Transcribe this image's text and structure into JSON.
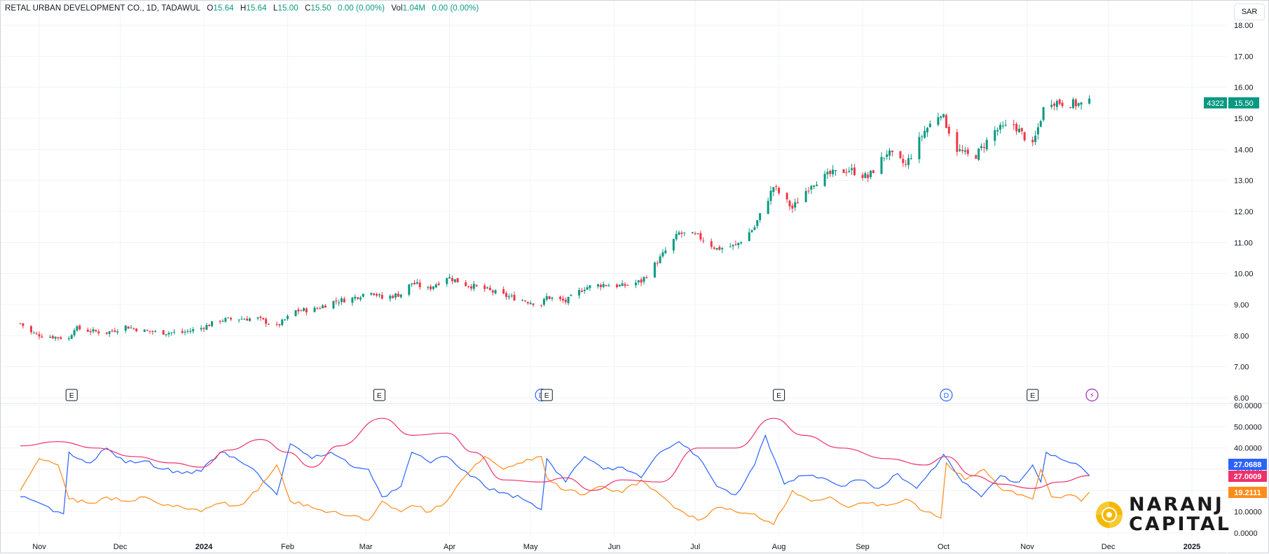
{
  "header": {
    "symbol": "RETAL URBAN DEVELOPMENT CO., 1D, TADAWUL",
    "o_label": "O",
    "o_value": "15.64",
    "h_label": "H",
    "h_value": "15.64",
    "l_label": "L",
    "l_value": "15.00",
    "c_label": "C",
    "c_value": "15.50",
    "change": "0.00 (0.00%)",
    "vol_label": "Vol",
    "vol_value": "1.04M",
    "vol_change": "0.00 (0.00%)"
  },
  "currency_button": "SAR",
  "price_tag": {
    "countdown": "4322",
    "price": "15.50"
  },
  "brand": {
    "line1": "NARANJ",
    "line2": "CAPITAL"
  },
  "colors": {
    "up": "#089981",
    "down": "#f23645",
    "plus_di": "#2962ff",
    "minus_di": "#ff8c1a",
    "adx": "#f0306b",
    "grid": "#f0f3fa",
    "axis_text": "#131722",
    "brand_accent": "#f5b800"
  },
  "events": [
    {
      "kind": "E",
      "date": "2023-11-13",
      "icon": "earnings-icon"
    },
    {
      "kind": "E",
      "date": "2024-03-06",
      "icon": "earnings-icon"
    },
    {
      "kind": "D",
      "date": "2024-05-05",
      "icon": "dividend-icon"
    },
    {
      "kind": "E",
      "date": "2024-05-07",
      "icon": "earnings-icon"
    },
    {
      "kind": "E",
      "date": "2024-08-01",
      "icon": "earnings-icon"
    },
    {
      "kind": "D",
      "date": "2024-10-02",
      "icon": "dividend-icon"
    },
    {
      "kind": "E",
      "date": "2024-11-03",
      "icon": "earnings-icon"
    },
    {
      "kind": "⚡",
      "date": "2024-11-25",
      "icon": "split-icon"
    }
  ],
  "chart_data": [
    {
      "type": "candlestick",
      "title": "RETAL URBAN DEVELOPMENT CO., 1D, TADAWUL",
      "x_ticks": [
        "Nov",
        "Dec",
        "2024",
        "Feb",
        "Mar",
        "Apr",
        "May",
        "Jun",
        "Jul",
        "Aug",
        "Sep",
        "Oct",
        "Nov",
        "Dec",
        "2025"
      ],
      "x_tick_dates": [
        "2023-11-01",
        "2023-12-01",
        "2024-01-01",
        "2024-02-01",
        "2024-03-01",
        "2024-04-01",
        "2024-05-01",
        "2024-06-01",
        "2024-07-01",
        "2024-08-01",
        "2024-09-01",
        "2024-10-01",
        "2024-11-01",
        "2024-12-01",
        "2025-01-01"
      ],
      "x_range": [
        "2023-10-25",
        "2025-01-15"
      ],
      "ylim": [
        6.0,
        18.0
      ],
      "y_ticks": [
        "6.00",
        "7.00",
        "8.00",
        "9.00",
        "10.00",
        "11.00",
        "12.00",
        "13.00",
        "14.00",
        "15.00",
        "16.00",
        "17.00",
        "18.00"
      ],
      "grid": true,
      "close_path": [
        [
          "2023-10-25",
          8.4
        ],
        [
          "2023-10-29",
          8.1
        ],
        [
          "2023-11-02",
          8.0
        ],
        [
          "2023-11-08",
          7.95
        ],
        [
          "2023-11-12",
          7.9
        ],
        [
          "2023-11-14",
          8.25
        ],
        [
          "2023-11-20",
          8.15
        ],
        [
          "2023-11-26",
          8.1
        ],
        [
          "2023-12-03",
          8.3
        ],
        [
          "2023-12-10",
          8.15
        ],
        [
          "2023-12-17",
          8.1
        ],
        [
          "2023-12-24",
          8.1
        ],
        [
          "2023-12-31",
          8.25
        ],
        [
          "2024-01-07",
          8.5
        ],
        [
          "2024-01-14",
          8.55
        ],
        [
          "2024-01-21",
          8.55
        ],
        [
          "2024-01-28",
          8.3
        ],
        [
          "2024-02-04",
          8.8
        ],
        [
          "2024-02-11",
          8.85
        ],
        [
          "2024-02-18",
          9.1
        ],
        [
          "2024-02-25",
          9.2
        ],
        [
          "2024-03-03",
          9.45
        ],
        [
          "2024-03-07",
          9.2
        ],
        [
          "2024-03-14",
          9.35
        ],
        [
          "2024-03-18",
          9.7
        ],
        [
          "2024-03-24",
          9.5
        ],
        [
          "2024-03-31",
          9.9
        ],
        [
          "2024-04-07",
          9.65
        ],
        [
          "2024-04-14",
          9.5
        ],
        [
          "2024-04-21",
          9.3
        ],
        [
          "2024-04-28",
          9.15
        ],
        [
          "2024-05-05",
          9.0
        ],
        [
          "2024-05-07",
          9.25
        ],
        [
          "2024-05-14",
          9.1
        ],
        [
          "2024-05-21",
          9.55
        ],
        [
          "2024-05-28",
          9.65
        ],
        [
          "2024-06-04",
          9.6
        ],
        [
          "2024-06-11",
          9.75
        ],
        [
          "2024-06-18",
          10.5
        ],
        [
          "2024-06-25",
          11.3
        ],
        [
          "2024-07-02",
          11.2
        ],
        [
          "2024-07-09",
          10.8
        ],
        [
          "2024-07-16",
          10.9
        ],
        [
          "2024-07-23",
          11.5
        ],
        [
          "2024-07-30",
          12.8
        ],
        [
          "2024-08-06",
          12.1
        ],
        [
          "2024-08-13",
          12.9
        ],
        [
          "2024-08-20",
          13.2
        ],
        [
          "2024-08-27",
          13.35
        ],
        [
          "2024-09-03",
          13.1
        ],
        [
          "2024-09-10",
          13.9
        ],
        [
          "2024-09-17",
          13.5
        ],
        [
          "2024-09-24",
          14.6
        ],
        [
          "2024-09-30",
          15.2
        ],
        [
          "2024-10-06",
          14.0
        ],
        [
          "2024-10-12",
          13.7
        ],
        [
          "2024-10-20",
          14.6
        ],
        [
          "2024-10-27",
          14.8
        ],
        [
          "2024-11-03",
          14.1
        ],
        [
          "2024-11-08",
          15.6
        ],
        [
          "2024-11-14",
          15.5
        ],
        [
          "2024-11-21",
          15.45
        ],
        [
          "2024-11-24",
          15.5
        ]
      ]
    },
    {
      "type": "line",
      "title": "",
      "ylim": [
        0,
        60
      ],
      "y_ticks": [
        "0.0000",
        "10.0000",
        "20.0000",
        "30.0000",
        "40.0000",
        "50.0000",
        "60.0000"
      ],
      "last_values": {
        "plus_di": "27.0688",
        "adx": "27.0009",
        "minus_di": "19.2111"
      },
      "series": [
        {
          "key": "plus_di",
          "points": [
            [
              "2023-10-25",
              17
            ],
            [
              "2023-11-08",
              10
            ],
            [
              "2023-11-10",
              9
            ],
            [
              "2023-11-12",
              38
            ],
            [
              "2023-11-20",
              33
            ],
            [
              "2023-11-26",
              40
            ],
            [
              "2023-12-03",
              33
            ],
            [
              "2023-12-10",
              34
            ],
            [
              "2023-12-17",
              30
            ],
            [
              "2023-12-24",
              28
            ],
            [
              "2023-12-31",
              29
            ],
            [
              "2024-01-07",
              38
            ],
            [
              "2024-01-14",
              34
            ],
            [
              "2024-01-21",
              28
            ],
            [
              "2024-01-28",
              18
            ],
            [
              "2024-02-02",
              42
            ],
            [
              "2024-02-10",
              35
            ],
            [
              "2024-02-17",
              38
            ],
            [
              "2024-02-24",
              32
            ],
            [
              "2024-03-02",
              30
            ],
            [
              "2024-03-07",
              17
            ],
            [
              "2024-03-14",
              22
            ],
            [
              "2024-03-18",
              38
            ],
            [
              "2024-03-25",
              33
            ],
            [
              "2024-03-31",
              36
            ],
            [
              "2024-04-07",
              29
            ],
            [
              "2024-04-14",
              22
            ],
            [
              "2024-04-21",
              19
            ],
            [
              "2024-04-28",
              16
            ],
            [
              "2024-05-05",
              11
            ],
            [
              "2024-05-07",
              35
            ],
            [
              "2024-05-14",
              24
            ],
            [
              "2024-05-21",
              36
            ],
            [
              "2024-05-28",
              30
            ],
            [
              "2024-06-04",
              31
            ],
            [
              "2024-06-11",
              26
            ],
            [
              "2024-06-18",
              38
            ],
            [
              "2024-06-25",
              43
            ],
            [
              "2024-07-02",
              36
            ],
            [
              "2024-07-09",
              22
            ],
            [
              "2024-07-16",
              18
            ],
            [
              "2024-07-23",
              32
            ],
            [
              "2024-07-27",
              46
            ],
            [
              "2024-08-03",
              23
            ],
            [
              "2024-08-10",
              27
            ],
            [
              "2024-08-17",
              26
            ],
            [
              "2024-08-24",
              22
            ],
            [
              "2024-08-31",
              25
            ],
            [
              "2024-09-07",
              21
            ],
            [
              "2024-09-14",
              28
            ],
            [
              "2024-09-21",
              21
            ],
            [
              "2024-09-28",
              31
            ],
            [
              "2024-10-01",
              37
            ],
            [
              "2024-10-08",
              24
            ],
            [
              "2024-10-15",
              17
            ],
            [
              "2024-10-22",
              27
            ],
            [
              "2024-10-29",
              24
            ],
            [
              "2024-11-03",
              32
            ],
            [
              "2024-11-06",
              24
            ],
            [
              "2024-11-08",
              38
            ],
            [
              "2024-11-15",
              34
            ],
            [
              "2024-11-21",
              31
            ],
            [
              "2024-11-24",
              27.07
            ]
          ]
        },
        {
          "key": "minus_di",
          "points": [
            [
              "2023-10-25",
              20
            ],
            [
              "2023-11-01",
              35
            ],
            [
              "2023-11-08",
              32
            ],
            [
              "2023-11-12",
              16
            ],
            [
              "2023-11-20",
              14
            ],
            [
              "2023-11-26",
              17
            ],
            [
              "2023-12-03",
              15
            ],
            [
              "2023-12-10",
              17
            ],
            [
              "2023-12-17",
              13
            ],
            [
              "2023-12-24",
              12
            ],
            [
              "2023-12-31",
              10
            ],
            [
              "2024-01-07",
              14
            ],
            [
              "2024-01-14",
              13
            ],
            [
              "2024-01-21",
              20
            ],
            [
              "2024-01-28",
              32
            ],
            [
              "2024-02-02",
              15
            ],
            [
              "2024-02-10",
              12
            ],
            [
              "2024-02-17",
              10
            ],
            [
              "2024-02-24",
              8
            ],
            [
              "2024-03-02",
              6
            ],
            [
              "2024-03-07",
              15
            ],
            [
              "2024-03-14",
              10
            ],
            [
              "2024-03-18",
              13
            ],
            [
              "2024-03-25",
              10
            ],
            [
              "2024-03-31",
              15
            ],
            [
              "2024-04-07",
              27
            ],
            [
              "2024-04-14",
              36
            ],
            [
              "2024-04-21",
              30
            ],
            [
              "2024-04-28",
              33
            ],
            [
              "2024-05-05",
              36
            ],
            [
              "2024-05-07",
              26
            ],
            [
              "2024-05-14",
              20
            ],
            [
              "2024-05-21",
              18
            ],
            [
              "2024-05-28",
              22
            ],
            [
              "2024-06-04",
              19
            ],
            [
              "2024-06-11",
              25
            ],
            [
              "2024-06-18",
              18
            ],
            [
              "2024-06-25",
              11
            ],
            [
              "2024-07-02",
              6
            ],
            [
              "2024-07-09",
              12
            ],
            [
              "2024-07-16",
              10
            ],
            [
              "2024-07-23",
              9
            ],
            [
              "2024-07-30",
              4
            ],
            [
              "2024-08-06",
              20
            ],
            [
              "2024-08-13",
              15
            ],
            [
              "2024-08-20",
              17
            ],
            [
              "2024-08-27",
              12
            ],
            [
              "2024-09-03",
              14
            ],
            [
              "2024-09-10",
              13
            ],
            [
              "2024-09-17",
              16
            ],
            [
              "2024-09-24",
              10
            ],
            [
              "2024-09-30",
              7
            ],
            [
              "2024-10-02",
              33
            ],
            [
              "2024-10-09",
              25
            ],
            [
              "2024-10-16",
              30
            ],
            [
              "2024-10-23",
              20
            ],
            [
              "2024-10-30",
              18
            ],
            [
              "2024-11-03",
              16
            ],
            [
              "2024-11-06",
              30
            ],
            [
              "2024-11-10",
              17
            ],
            [
              "2024-11-17",
              18
            ],
            [
              "2024-11-21",
              15
            ],
            [
              "2024-11-24",
              19.21
            ]
          ]
        },
        {
          "key": "adx",
          "points": [
            [
              "2023-10-25",
              41
            ],
            [
              "2023-11-08",
              43
            ],
            [
              "2023-11-22",
              40
            ],
            [
              "2023-12-06",
              36
            ],
            [
              "2023-12-20",
              33
            ],
            [
              "2023-12-31",
              31
            ],
            [
              "2024-01-10",
              39
            ],
            [
              "2024-01-22",
              44
            ],
            [
              "2024-02-01",
              38
            ],
            [
              "2024-02-10",
              31
            ],
            [
              "2024-02-20",
              41
            ],
            [
              "2024-03-07",
              54
            ],
            [
              "2024-03-18",
              46
            ],
            [
              "2024-03-31",
              47
            ],
            [
              "2024-04-10",
              38
            ],
            [
              "2024-04-21",
              25
            ],
            [
              "2024-05-05",
              24
            ],
            [
              "2024-05-14",
              26
            ],
            [
              "2024-05-24",
              20
            ],
            [
              "2024-06-04",
              25
            ],
            [
              "2024-06-18",
              24
            ],
            [
              "2024-07-02",
              40
            ],
            [
              "2024-07-16",
              40
            ],
            [
              "2024-07-30",
              54
            ],
            [
              "2024-08-10",
              46
            ],
            [
              "2024-08-24",
              40
            ],
            [
              "2024-09-10",
              35
            ],
            [
              "2024-09-24",
              32
            ],
            [
              "2024-10-02",
              36
            ],
            [
              "2024-10-12",
              27
            ],
            [
              "2024-10-22",
              23
            ],
            [
              "2024-11-03",
              21
            ],
            [
              "2024-11-13",
              24
            ],
            [
              "2024-11-24",
              27.0
            ]
          ]
        }
      ]
    }
  ]
}
